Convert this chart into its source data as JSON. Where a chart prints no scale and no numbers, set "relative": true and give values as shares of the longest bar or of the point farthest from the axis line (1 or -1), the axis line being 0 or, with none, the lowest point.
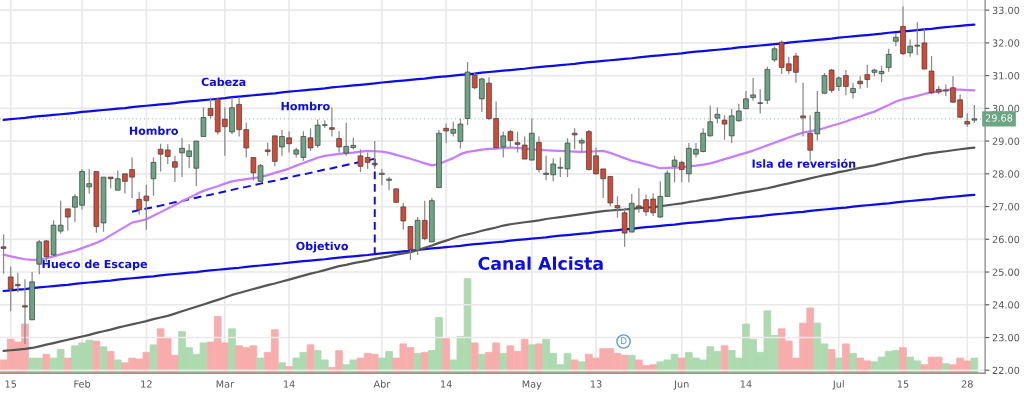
{
  "chart_data": [
    {
      "type": "candlestick",
      "categories": [
        null,
        "15",
        null,
        null,
        null,
        null,
        null,
        null,
        null,
        null,
        null,
        "Feb",
        null,
        null,
        null,
        null,
        null,
        null,
        null,
        null,
        "12",
        null,
        null,
        null,
        null,
        null,
        null,
        null,
        null,
        null,
        null,
        "Mar",
        null,
        null,
        null,
        null,
        null,
        null,
        null,
        null,
        "14",
        null,
        null,
        null,
        null,
        null,
        null,
        null,
        null,
        null,
        null,
        null,
        null,
        "Abr",
        null,
        null,
        null,
        null,
        null,
        null,
        null,
        null,
        "14",
        null,
        null,
        null,
        null,
        null,
        null,
        null,
        null,
        null,
        null,
        null,
        "May",
        null,
        null,
        null,
        null,
        null,
        null,
        null,
        null,
        "13",
        null,
        null,
        null,
        null,
        null,
        null,
        null,
        null,
        null,
        null,
        null,
        "Jun",
        null,
        null,
        null,
        null,
        null,
        null,
        null,
        null,
        "14",
        null,
        null,
        null,
        null,
        null,
        null,
        null,
        null,
        null,
        null,
        null,
        null,
        "Jul",
        null,
        null,
        null,
        null,
        null,
        null,
        null,
        null,
        "15",
        null,
        null,
        null,
        null,
        null,
        null,
        null,
        null,
        "28",
        null
      ],
      "ohlc": [
        [
          25.77,
          26.15,
          24.95,
          25.72
        ],
        [
          24.85,
          25.17,
          23.8,
          24.48
        ],
        [
          24.62,
          24.98,
          24.38,
          24.58
        ],
        [
          23.97,
          24.78,
          22.8,
          23.93
        ],
        [
          23.54,
          25.0,
          23.54,
          24.7
        ],
        [
          25.24,
          25.98,
          24.93,
          25.92
        ],
        [
          25.95,
          25.98,
          25.3,
          25.47
        ],
        [
          25.52,
          26.58,
          25.5,
          26.43
        ],
        [
          26.25,
          27.18,
          26.17,
          26.43
        ],
        [
          26.93,
          26.93,
          26.27,
          26.68
        ],
        [
          26.98,
          27.38,
          26.53,
          27.3
        ],
        [
          27.04,
          28.15,
          26.91,
          28.07
        ],
        [
          27.6,
          28.15,
          27.4,
          27.7
        ],
        [
          28.07,
          28.07,
          26.2,
          26.39
        ],
        [
          26.5,
          27.9,
          26.23,
          27.9
        ],
        [
          27.9,
          27.9,
          27.55,
          27.85
        ],
        [
          27.5,
          28.1,
          27.5,
          27.85
        ],
        [
          28.0,
          28.0,
          27.4,
          27.77
        ],
        [
          28.13,
          28.5,
          27.26,
          27.9
        ],
        [
          27.22,
          27.45,
          26.76,
          26.9
        ],
        [
          27.32,
          27.67,
          26.29,
          27.18
        ],
        [
          27.85,
          28.5,
          27.33,
          28.35
        ],
        [
          28.75,
          28.92,
          28.07,
          28.6
        ],
        [
          28.73,
          28.9,
          28.3,
          28.53
        ],
        [
          28.37,
          28.55,
          27.75,
          28.2
        ],
        [
          28.64,
          29.1,
          27.9,
          28.78
        ],
        [
          28.53,
          28.9,
          28.17,
          28.7
        ],
        [
          28.17,
          29.0,
          27.63,
          29.0
        ],
        [
          29.14,
          30.03,
          29.14,
          29.72
        ],
        [
          30.0,
          30.33,
          29.69,
          29.78
        ],
        [
          30.28,
          30.33,
          29.2,
          29.28
        ],
        [
          29.67,
          30.03,
          28.55,
          29.44
        ],
        [
          29.28,
          30.33,
          29.21,
          30.02
        ],
        [
          30.12,
          30.35,
          29.14,
          29.35
        ],
        [
          29.35,
          29.56,
          28.5,
          28.79
        ],
        [
          28.5,
          28.5,
          27.8,
          28.03
        ],
        [
          27.77,
          28.3,
          27.75,
          28.25
        ],
        [
          28.73,
          28.95,
          28.55,
          28.68
        ],
        [
          29.16,
          29.16,
          28.23,
          28.38
        ],
        [
          28.82,
          29.34,
          28.55,
          29.14
        ],
        [
          29.1,
          29.3,
          28.65,
          28.92
        ],
        [
          28.6,
          28.8,
          28.5,
          28.73
        ],
        [
          28.5,
          29.3,
          28.4,
          29.14
        ],
        [
          29.1,
          29.39,
          28.7,
          28.79
        ],
        [
          28.87,
          29.66,
          28.8,
          29.49
        ],
        [
          29.48,
          29.64,
          29.4,
          29.5
        ],
        [
          29.41,
          30.03,
          29.14,
          29.36
        ],
        [
          29.08,
          29.3,
          28.65,
          28.82
        ],
        [
          28.63,
          29.56,
          28.55,
          28.84
        ],
        [
          28.8,
          29.1,
          28.75,
          28.87
        ],
        [
          28.55,
          28.75,
          28.05,
          28.23
        ],
        [
          28.5,
          28.65,
          28.15,
          28.35
        ],
        [
          28.32,
          29.0,
          28.15,
          28.28
        ],
        [
          27.98,
          28.15,
          27.65,
          28.02
        ],
        [
          27.8,
          27.9,
          27.5,
          27.84
        ],
        [
          27.54,
          27.56,
          27.11,
          27.13
        ],
        [
          26.99,
          27.11,
          26.3,
          26.56
        ],
        [
          26.39,
          26.39,
          25.37,
          25.69
        ],
        [
          25.67,
          26.68,
          25.52,
          26.58
        ],
        [
          26.58,
          27.18,
          25.97,
          26.02
        ],
        [
          25.92,
          27.26,
          25.92,
          27.18
        ],
        [
          27.58,
          29.34,
          27.58,
          29.24
        ],
        [
          29.39,
          29.54,
          28.94,
          29.31
        ],
        [
          29.24,
          29.59,
          29.14,
          29.36
        ],
        [
          28.99,
          29.69,
          28.77,
          29.52
        ],
        [
          29.69,
          31.42,
          29.49,
          31.11
        ],
        [
          31.01,
          31.11,
          30.58,
          30.63
        ],
        [
          30.29,
          30.93,
          29.89,
          30.9
        ],
        [
          30.77,
          30.95,
          29.64,
          29.69
        ],
        [
          29.69,
          30.21,
          28.75,
          28.8
        ],
        [
          28.82,
          29.29,
          28.5,
          29.16
        ],
        [
          29.29,
          29.34,
          28.8,
          29.02
        ],
        [
          28.95,
          29.29,
          28.65,
          28.9
        ],
        [
          28.88,
          29.14,
          28.45,
          28.45
        ],
        [
          28.42,
          29.69,
          28.42,
          29.24
        ],
        [
          28.96,
          29.14,
          28.05,
          28.13
        ],
        [
          27.98,
          28.55,
          27.8,
          28.02
        ],
        [
          27.97,
          28.47,
          27.77,
          28.3
        ],
        [
          28.17,
          28.5,
          27.9,
          28.2
        ],
        [
          28.15,
          29.09,
          27.9,
          28.94
        ],
        [
          29.24,
          29.39,
          28.75,
          29.19
        ],
        [
          28.94,
          29.09,
          28.65,
          29.02
        ],
        [
          29.29,
          29.34,
          28.1,
          28.13
        ],
        [
          28.55,
          28.8,
          27.97,
          28.0
        ],
        [
          28.15,
          28.15,
          27.26,
          27.85
        ],
        [
          27.92,
          27.92,
          27.01,
          27.11
        ],
        [
          27.03,
          27.31,
          26.66,
          26.96
        ],
        [
          26.81,
          26.96,
          25.77,
          26.19
        ],
        [
          26.22,
          27.38,
          26.22,
          27.1
        ],
        [
          27.02,
          27.56,
          26.81,
          26.96
        ],
        [
          27.21,
          27.36,
          26.71,
          26.84
        ],
        [
          27.23,
          27.41,
          26.71,
          26.81
        ],
        [
          26.68,
          27.77,
          26.66,
          27.31
        ],
        [
          27.31,
          28.1,
          27.31,
          28.02
        ],
        [
          28.23,
          28.55,
          27.74,
          28.42
        ],
        [
          28.35,
          28.4,
          27.74,
          28.13
        ],
        [
          28.0,
          28.94,
          27.74,
          28.78
        ],
        [
          28.6,
          28.94,
          28.5,
          28.75
        ],
        [
          28.68,
          29.39,
          28.66,
          29.24
        ],
        [
          29.16,
          30.08,
          29.14,
          29.59
        ],
        [
          29.7,
          30.03,
          29.54,
          29.82
        ],
        [
          29.64,
          29.79,
          29.04,
          29.52
        ],
        [
          29.16,
          29.98,
          28.94,
          29.77
        ],
        [
          29.62,
          30.13,
          29.6,
          29.92
        ],
        [
          29.99,
          30.53,
          29.99,
          30.29
        ],
        [
          30.33,
          30.93,
          30.23,
          30.41
        ],
        [
          30.15,
          30.58,
          29.84,
          30.16
        ],
        [
          30.25,
          31.27,
          30.13,
          31.19
        ],
        [
          31.48,
          31.89,
          31.42,
          31.82
        ],
        [
          32.02,
          32.07,
          31.05,
          31.25
        ],
        [
          31.36,
          31.58,
          31.05,
          31.15
        ],
        [
          31.6,
          31.7,
          30.78,
          31.1
        ],
        [
          29.77,
          30.78,
          29.14,
          29.71
        ],
        [
          29.24,
          29.79,
          28.4,
          28.72
        ],
        [
          29.22,
          30.53,
          29.02,
          29.88
        ],
        [
          30.46,
          31.08,
          30.45,
          31.0
        ],
        [
          31.17,
          31.2,
          30.48,
          30.55
        ],
        [
          30.67,
          30.98,
          30.53,
          30.93
        ],
        [
          31.0,
          31.17,
          30.4,
          30.67
        ],
        [
          30.48,
          30.78,
          30.3,
          30.61
        ],
        [
          30.83,
          30.98,
          30.6,
          30.75
        ],
        [
          31.03,
          31.33,
          30.63,
          30.88
        ],
        [
          31.1,
          31.22,
          30.98,
          31.17
        ],
        [
          31.06,
          31.3,
          30.8,
          31.13
        ],
        [
          31.25,
          31.82,
          31.12,
          31.65
        ],
        [
          32.05,
          32.3,
          31.9,
          32.17
        ],
        [
          32.5,
          33.11,
          31.62,
          31.67
        ],
        [
          31.7,
          32.1,
          31.58,
          31.9
        ],
        [
          31.9,
          32.63,
          31.62,
          31.93
        ],
        [
          32.0,
          32.42,
          31.2,
          31.2
        ],
        [
          31.14,
          31.6,
          30.43,
          30.48
        ],
        [
          30.58,
          30.68,
          30.43,
          30.5
        ],
        [
          30.53,
          30.73,
          30.38,
          30.56
        ],
        [
          30.63,
          30.99,
          30.16,
          30.19
        ],
        [
          30.26,
          30.43,
          29.71,
          29.73
        ],
        [
          29.6,
          29.85,
          29.44,
          29.52
        ],
        [
          29.64,
          30.1,
          29.55,
          29.68
        ]
      ],
      "colors": [
        "#d24a36",
        "#d24a36",
        "#d24a36",
        "#d24a36",
        "#6ba583",
        "#6ba583",
        "#d24a36",
        "#6ba583",
        "#6ba583",
        "#d24a36",
        "#6ba583",
        "#6ba583",
        "#6ba583",
        "#d24a36",
        "#6ba583",
        "#d24a36",
        "#6ba583",
        "#d24a36",
        "#d24a36",
        "#d24a36",
        "#d24a36",
        "#6ba583",
        "#d24a36",
        "#d24a36",
        "#d24a36",
        "#6ba583",
        "#6ba583",
        "#6ba583",
        "#6ba583",
        "#d24a36",
        "#d24a36",
        "#d24a36",
        "#6ba583",
        "#d24a36",
        "#d24a36",
        "#d24a36",
        "#6ba583",
        "#d24a36",
        "#d24a36",
        "#6ba583",
        "#d24a36",
        "#6ba583",
        "#6ba583",
        "#d24a36",
        "#6ba583",
        "#6ba583",
        "#d24a36",
        "#d24a36",
        "#6ba583",
        "#6ba583",
        "#d24a36",
        "#d24a36",
        "#d24a36",
        "#6ba583",
        "#6ba583",
        "#d24a36",
        "#d24a36",
        "#d24a36",
        "#6ba583",
        "#d24a36",
        "#6ba583",
        "#6ba583",
        "#d24a36",
        "#6ba583",
        "#6ba583",
        "#6ba583",
        "#d24a36",
        "#6ba583",
        "#d24a36",
        "#d24a36",
        "#6ba583",
        "#d24a36",
        "#d24a36",
        "#d24a36",
        "#6ba583",
        "#d24a36",
        "#6ba583",
        "#6ba583",
        "#6ba583",
        "#6ba583",
        "#d24a36",
        "#6ba583",
        "#d24a36",
        "#d24a36",
        "#d24a36",
        "#d24a36",
        "#d24a36",
        "#d24a36",
        "#6ba583",
        "#d24a36",
        "#d24a36",
        "#d24a36",
        "#6ba583",
        "#6ba583",
        "#6ba583",
        "#d24a36",
        "#6ba583",
        "#6ba583",
        "#6ba583",
        "#6ba583",
        "#6ba583",
        "#d24a36",
        "#6ba583",
        "#6ba583",
        "#6ba583",
        "#6ba583",
        "#6ba583",
        "#6ba583",
        "#6ba583",
        "#d24a36",
        "#d24a36",
        "#d24a36",
        "#d24a36",
        "#d24a36",
        "#6ba583",
        "#6ba583",
        "#d24a36",
        "#6ba583",
        "#d24a36",
        "#6ba583",
        "#d24a36",
        "#d24a36",
        "#6ba583",
        "#6ba583",
        "#6ba583",
        "#6ba583",
        "#d24a36",
        "#6ba583",
        "#6ba583",
        "#d24a36",
        "#d24a36",
        "#d24a36",
        "#6ba583",
        "#d24a36",
        "#d24a36",
        "#d24a36",
        "#6ba583"
      ],
      "series": [
        {
          "type": "line",
          "color": "#0c0ce6",
          "line_style": "solid",
          "values": [
            29.65,
            29.67,
            29.69,
            29.71,
            29.74,
            29.76,
            29.78,
            29.8,
            29.82,
            29.84,
            29.86,
            29.89,
            29.91,
            29.93,
            29.95,
            29.97,
            29.99,
            30.01,
            30.04,
            30.06,
            30.08,
            30.1,
            30.12,
            30.14,
            30.16,
            30.19,
            30.21,
            30.23,
            30.25,
            30.27,
            30.29,
            30.31,
            30.34,
            30.36,
            30.38,
            30.4,
            30.42,
            30.44,
            30.46,
            30.49,
            30.51,
            30.53,
            30.55,
            30.57,
            30.59,
            30.61,
            30.64,
            30.66,
            30.68,
            30.7,
            30.72,
            30.74,
            30.76,
            30.79,
            30.81,
            30.83,
            30.85,
            30.87,
            30.89,
            30.91,
            30.94,
            30.96,
            30.98,
            31.0,
            31.02,
            31.04,
            31.06,
            31.09,
            31.11,
            31.13,
            31.15,
            31.17,
            31.19,
            31.21,
            31.24,
            31.26,
            31.28,
            31.3,
            31.32,
            31.34,
            31.36,
            31.39,
            31.41,
            31.43,
            31.45,
            31.47,
            31.49,
            31.51,
            31.53,
            31.56,
            31.58,
            31.6,
            31.62,
            31.64,
            31.66,
            31.68,
            31.71,
            31.73,
            31.75,
            31.77,
            31.79,
            31.81,
            31.83,
            31.86,
            31.88,
            31.9,
            31.92,
            31.94,
            31.96,
            31.98,
            32.01,
            32.03,
            32.05,
            32.07,
            32.09,
            32.11,
            32.13,
            32.16,
            32.18,
            32.2,
            32.22,
            32.24,
            32.26,
            32.28,
            32.31,
            32.33,
            32.35,
            32.37,
            32.39,
            32.41,
            32.43,
            32.46,
            32.48,
            32.5,
            32.52,
            32.54,
            32.56
          ]
        },
        {
          "type": "line",
          "color": "#0c0ce6",
          "line_style": "solid",
          "values": [
            24.42,
            24.44,
            24.46,
            24.48,
            24.51,
            24.53,
            24.55,
            24.57,
            24.59,
            24.61,
            24.64,
            24.66,
            24.68,
            24.7,
            24.72,
            24.74,
            24.77,
            24.79,
            24.81,
            24.83,
            24.85,
            24.87,
            24.9,
            24.92,
            24.94,
            24.96,
            24.98,
            25.0,
            25.03,
            25.05,
            25.07,
            25.09,
            25.11,
            25.13,
            25.16,
            25.18,
            25.2,
            25.22,
            25.24,
            25.26,
            25.29,
            25.31,
            25.33,
            25.35,
            25.37,
            25.39,
            25.42,
            25.44,
            25.46,
            25.48,
            25.5,
            25.52,
            25.55,
            25.57,
            25.59,
            25.61,
            25.63,
            25.65,
            25.68,
            25.7,
            25.72,
            25.74,
            25.76,
            25.78,
            25.8,
            25.83,
            25.85,
            25.87,
            25.89,
            25.91,
            25.93,
            25.96,
            25.98,
            26.0,
            26.02,
            26.04,
            26.06,
            26.09,
            26.11,
            26.13,
            26.15,
            26.17,
            26.19,
            26.22,
            26.24,
            26.26,
            26.28,
            26.3,
            26.32,
            26.35,
            26.37,
            26.39,
            26.41,
            26.43,
            26.45,
            26.48,
            26.5,
            26.52,
            26.54,
            26.56,
            26.58,
            26.61,
            26.63,
            26.65,
            26.67,
            26.69,
            26.71,
            26.74,
            26.76,
            26.78,
            26.8,
            26.82,
            26.84,
            26.87,
            26.89,
            26.91,
            26.93,
            26.95,
            26.97,
            27.0,
            27.02,
            27.04,
            27.06,
            27.08,
            27.1,
            27.13,
            27.15,
            27.17,
            27.19,
            27.21,
            27.23,
            27.26,
            27.28,
            27.3,
            27.32,
            27.34,
            27.36
          ]
        },
        {
          "type": "line",
          "color": "#0c0ce6",
          "line_style": "dashed",
          "values": [
            null,
            null,
            null,
            null,
            null,
            null,
            null,
            null,
            null,
            null,
            null,
            null,
            null,
            null,
            null,
            null,
            null,
            null,
            26.84,
            26.89,
            26.94,
            26.98,
            27.03,
            27.08,
            27.13,
            27.17,
            27.22,
            27.27,
            27.32,
            27.36,
            27.41,
            27.46,
            27.51,
            27.56,
            27.6,
            27.65,
            27.7,
            27.75,
            27.79,
            27.84,
            27.89,
            27.94,
            27.98,
            28.03,
            28.08,
            28.13,
            28.17,
            28.22,
            28.27,
            28.32,
            28.36,
            28.41,
            28.46,
            null,
            null,
            null,
            null,
            null,
            null,
            null,
            null,
            null,
            null,
            null,
            null,
            null,
            null,
            null,
            null,
            null,
            null,
            null,
            null,
            null,
            null,
            null,
            null,
            null,
            null,
            null,
            null,
            null,
            null,
            null,
            null,
            null,
            null,
            null,
            null,
            null,
            null,
            null,
            null,
            null,
            null,
            null,
            null,
            null,
            null,
            null,
            null,
            null,
            null,
            null,
            null,
            null,
            null,
            null,
            null,
            null,
            null,
            null,
            null,
            null,
            null,
            null,
            null,
            null,
            null,
            null,
            null,
            null,
            null,
            null,
            null,
            null,
            null,
            null,
            null,
            null,
            null,
            null,
            null,
            null,
            null,
            null,
            null
          ]
        },
        {
          "type": "line",
          "color": "#c77dff",
          "line_style": "solid",
          "values": [
            25.53,
            25.48,
            25.43,
            25.39,
            25.37,
            25.38,
            25.42,
            25.48,
            25.54,
            25.6,
            25.65,
            25.73,
            25.81,
            25.89,
            25.99,
            26.12,
            26.25,
            26.38,
            26.51,
            26.56,
            26.61,
            26.72,
            26.83,
            26.94,
            27.05,
            27.16,
            27.27,
            27.38,
            27.48,
            27.55,
            27.62,
            27.7,
            27.77,
            27.81,
            27.84,
            27.87,
            27.9,
            27.96,
            28.03,
            28.09,
            28.16,
            28.25,
            28.33,
            28.41,
            28.49,
            28.55,
            28.58,
            28.61,
            28.63,
            28.65,
            28.68,
            28.7,
            28.69,
            28.68,
            28.64,
            28.58,
            28.52,
            28.46,
            28.39,
            28.32,
            28.26,
            28.3,
            28.39,
            28.48,
            28.6,
            28.67,
            28.7,
            28.74,
            28.76,
            28.77,
            28.79,
            28.8,
            28.79,
            28.77,
            28.75,
            28.73,
            28.72,
            28.71,
            28.7,
            28.69,
            28.68,
            28.67,
            28.68,
            28.69,
            28.7,
            28.64,
            28.56,
            28.48,
            28.4,
            28.35,
            28.29,
            28.23,
            28.17,
            28.18,
            28.19,
            28.2,
            28.23,
            28.25,
            28.28,
            28.32,
            28.38,
            28.45,
            28.51,
            28.58,
            28.64,
            28.71,
            28.79,
            28.87,
            28.95,
            29.03,
            29.11,
            29.19,
            29.26,
            29.3,
            29.34,
            29.4,
            29.47,
            29.53,
            29.6,
            29.68,
            29.75,
            29.83,
            29.9,
            30.0,
            30.1,
            30.21,
            30.28,
            30.33,
            30.38,
            30.44,
            30.49,
            30.52,
            30.56,
            30.58,
            30.57,
            30.56,
            30.55
          ]
        },
        {
          "type": "line",
          "color": "#555555",
          "line_style": "solid",
          "values": [
            22.59,
            22.61,
            22.63,
            22.65,
            22.68,
            22.73,
            22.78,
            22.83,
            22.88,
            22.93,
            22.98,
            23.03,
            23.08,
            23.14,
            23.19,
            23.24,
            23.3,
            23.35,
            23.4,
            23.45,
            23.5,
            23.56,
            23.61,
            23.66,
            23.73,
            23.8,
            23.87,
            23.94,
            24.01,
            24.08,
            24.15,
            24.22,
            24.3,
            24.36,
            24.42,
            24.48,
            24.54,
            24.6,
            24.65,
            24.71,
            24.77,
            24.83,
            24.89,
            24.95,
            25.0,
            25.06,
            25.12,
            25.18,
            25.22,
            25.27,
            25.31,
            25.35,
            25.4,
            25.44,
            25.48,
            25.53,
            25.57,
            25.61,
            25.67,
            25.74,
            25.81,
            25.89,
            25.96,
            26.03,
            26.1,
            26.15,
            26.2,
            26.26,
            26.31,
            26.36,
            26.42,
            26.46,
            26.49,
            26.52,
            26.55,
            26.58,
            26.62,
            26.65,
            26.68,
            26.71,
            26.74,
            26.77,
            26.8,
            26.83,
            26.86,
            26.88,
            26.9,
            26.91,
            26.93,
            26.95,
            26.97,
            26.98,
            27.01,
            27.04,
            27.07,
            27.1,
            27.14,
            27.17,
            27.21,
            27.24,
            27.28,
            27.32,
            27.36,
            27.4,
            27.44,
            27.48,
            27.52,
            27.56,
            27.61,
            27.66,
            27.71,
            27.76,
            27.81,
            27.86,
            27.91,
            27.96,
            28.0,
            28.05,
            28.09,
            28.14,
            28.18,
            28.22,
            28.26,
            28.31,
            28.36,
            28.41,
            28.46,
            28.51,
            28.55,
            28.6,
            28.63,
            28.66,
            28.69,
            28.72,
            28.75,
            28.78,
            28.8
          ]
        }
      ],
      "ylim": [
        21.91,
        33.31
      ],
      "yticks": [
        {
          "value": 22,
          "label": "22.00"
        },
        {
          "value": 23,
          "label": "23.00"
        },
        {
          "value": 24,
          "label": "24.00"
        },
        {
          "value": 25,
          "label": "25.00"
        },
        {
          "value": 26,
          "label": "26.00"
        },
        {
          "value": 27,
          "label": "27.00"
        },
        {
          "value": 28,
          "label": "28.00"
        },
        {
          "value": 29,
          "label": "29.00"
        },
        {
          "value": 30,
          "label": "30.00"
        },
        {
          "value": 31,
          "label": "31.00"
        },
        {
          "value": 32,
          "label": "32.00"
        },
        {
          "value": 33,
          "label": "33.00"
        }
      ],
      "grid": true,
      "ref_lines": [
        {
          "axis": "y",
          "value": 29.68,
          "label": "29.68",
          "color": "#6ba583"
        }
      ],
      "annotations": [
        "Hombro",
        "Cabeza",
        "Hombro",
        "Hueco de Escape",
        "Objetivo",
        "Canal Alcista",
        "Isla de reversión",
        "D"
      ]
    },
    {
      "type": "bar",
      "relative": true,
      "categories": [
        null,
        null,
        null,
        null,
        null,
        null,
        null,
        null,
        null,
        null,
        null,
        null,
        null,
        null,
        null,
        null,
        null,
        null,
        null,
        null,
        null,
        null,
        null,
        null,
        null,
        null,
        null,
        null,
        null,
        null,
        null,
        null,
        null,
        null,
        null,
        null,
        null,
        null,
        null,
        null,
        null,
        null,
        null,
        null,
        null,
        null,
        null,
        null,
        null,
        null,
        null,
        null,
        null,
        null,
        null,
        null,
        null,
        null,
        null,
        null,
        null,
        null,
        null,
        null,
        null,
        null,
        null,
        null,
        null,
        null,
        null,
        null,
        null,
        null,
        null,
        null,
        null,
        null,
        null,
        null,
        null,
        null,
        null,
        null,
        null,
        null,
        null,
        null,
        null,
        null,
        null,
        null,
        null,
        null,
        null,
        null,
        null,
        null,
        null,
        null,
        null,
        null,
        null,
        null,
        null,
        null,
        null,
        null,
        null,
        null,
        null,
        null,
        null,
        null,
        null,
        null,
        null,
        null,
        null,
        null,
        null,
        null,
        null,
        null,
        null,
        null,
        null,
        null,
        null,
        null,
        null,
        null,
        null,
        null,
        null,
        null,
        null
      ],
      "values": [
        0.14,
        0.36,
        0.33,
        0.52,
        0.16,
        0.16,
        0.2,
        0.16,
        0.25,
        0.16,
        0.29,
        0.32,
        0.35,
        0.34,
        0.28,
        0.23,
        0.14,
        0.11,
        0.16,
        0.15,
        0.22,
        0.3,
        0.47,
        0.38,
        0.19,
        0.44,
        0.27,
        0.2,
        0.32,
        0.33,
        0.6,
        0.32,
        0.47,
        0.29,
        0.27,
        0.29,
        0.16,
        0.22,
        0.46,
        0.11,
        0.07,
        0.16,
        0.22,
        0.3,
        0.24,
        0.14,
        0.06,
        0.24,
        0.09,
        0.14,
        0.16,
        0.21,
        0.2,
        0.16,
        0.23,
        0.16,
        0.31,
        0.27,
        0.21,
        0.22,
        0.24,
        0.59,
        0.37,
        0.14,
        0.39,
        1.0,
        0.32,
        0.2,
        0.22,
        0.32,
        0.21,
        0.29,
        0.23,
        0.36,
        0.3,
        0.31,
        0.36,
        0.21,
        0.09,
        0.21,
        0.14,
        0.12,
        0.2,
        0.16,
        0.26,
        0.26,
        0.21,
        0.19,
        0.19,
        0.14,
        0.08,
        0.09,
        0.12,
        0.14,
        0.2,
        0.16,
        0.22,
        0.16,
        0.14,
        0.28,
        0.23,
        0.29,
        0.24,
        0.16,
        0.52,
        0.36,
        0.22,
        0.66,
        0.4,
        0.47,
        0.34,
        0.16,
        0.53,
        0.69,
        0.53,
        0.31,
        0.25,
        0.16,
        0.31,
        0.21,
        0.16,
        0.13,
        0.12,
        0.17,
        0.23,
        0.24,
        0.27,
        0.17,
        0.13,
        0.09,
        0.17,
        0.17,
        0.1,
        0.09,
        0.16,
        0.13,
        0.16
      ],
      "colors": [
        "#f8a5a5",
        "#f8a5a5",
        "#f8a5a5",
        "#f8a5a5",
        "#a5d6a7",
        "#a5d6a7",
        "#f8a5a5",
        "#a5d6a7",
        "#a5d6a7",
        "#f8a5a5",
        "#a5d6a7",
        "#a5d6a7",
        "#a5d6a7",
        "#f8a5a5",
        "#a5d6a7",
        "#f8a5a5",
        "#a5d6a7",
        "#f8a5a5",
        "#f8a5a5",
        "#f8a5a5",
        "#f8a5a5",
        "#a5d6a7",
        "#f8a5a5",
        "#f8a5a5",
        "#f8a5a5",
        "#a5d6a7",
        "#a5d6a7",
        "#a5d6a7",
        "#a5d6a7",
        "#f8a5a5",
        "#f8a5a5",
        "#f8a5a5",
        "#a5d6a7",
        "#f8a5a5",
        "#f8a5a5",
        "#f8a5a5",
        "#a5d6a7",
        "#f8a5a5",
        "#f8a5a5",
        "#a5d6a7",
        "#f8a5a5",
        "#a5d6a7",
        "#a5d6a7",
        "#f8a5a5",
        "#a5d6a7",
        "#a5d6a7",
        "#f8a5a5",
        "#f8a5a5",
        "#a5d6a7",
        "#a5d6a7",
        "#f8a5a5",
        "#f8a5a5",
        "#f8a5a5",
        "#a5d6a7",
        "#a5d6a7",
        "#f8a5a5",
        "#f8a5a5",
        "#f8a5a5",
        "#a5d6a7",
        "#f8a5a5",
        "#a5d6a7",
        "#a5d6a7",
        "#f8a5a5",
        "#a5d6a7",
        "#a5d6a7",
        "#a5d6a7",
        "#f8a5a5",
        "#a5d6a7",
        "#f8a5a5",
        "#f8a5a5",
        "#a5d6a7",
        "#f8a5a5",
        "#f8a5a5",
        "#f8a5a5",
        "#a5d6a7",
        "#f8a5a5",
        "#a5d6a7",
        "#a5d6a7",
        "#a5d6a7",
        "#a5d6a7",
        "#f8a5a5",
        "#a5d6a7",
        "#f8a5a5",
        "#f8a5a5",
        "#f8a5a5",
        "#f8a5a5",
        "#f8a5a5",
        "#f8a5a5",
        "#a5d6a7",
        "#f8a5a5",
        "#f8a5a5",
        "#f8a5a5",
        "#a5d6a7",
        "#a5d6a7",
        "#a5d6a7",
        "#f8a5a5",
        "#a5d6a7",
        "#a5d6a7",
        "#a5d6a7",
        "#a5d6a7",
        "#a5d6a7",
        "#f8a5a5",
        "#a5d6a7",
        "#a5d6a7",
        "#a5d6a7",
        "#a5d6a7",
        "#a5d6a7",
        "#a5d6a7",
        "#a5d6a7",
        "#f8a5a5",
        "#f8a5a5",
        "#f8a5a5",
        "#f8a5a5",
        "#f8a5a5",
        "#a5d6a7",
        "#a5d6a7",
        "#f8a5a5",
        "#a5d6a7",
        "#f8a5a5",
        "#a5d6a7",
        "#f8a5a5",
        "#f8a5a5",
        "#a5d6a7",
        "#a5d6a7",
        "#a5d6a7",
        "#a5d6a7",
        "#f8a5a5",
        "#a5d6a7",
        "#a5d6a7",
        "#f8a5a5",
        "#f8a5a5",
        "#f8a5a5",
        "#a5d6a7",
        "#f8a5a5",
        "#f8a5a5",
        "#f8a5a5",
        "#a5d6a7"
      ]
    }
  ]
}
